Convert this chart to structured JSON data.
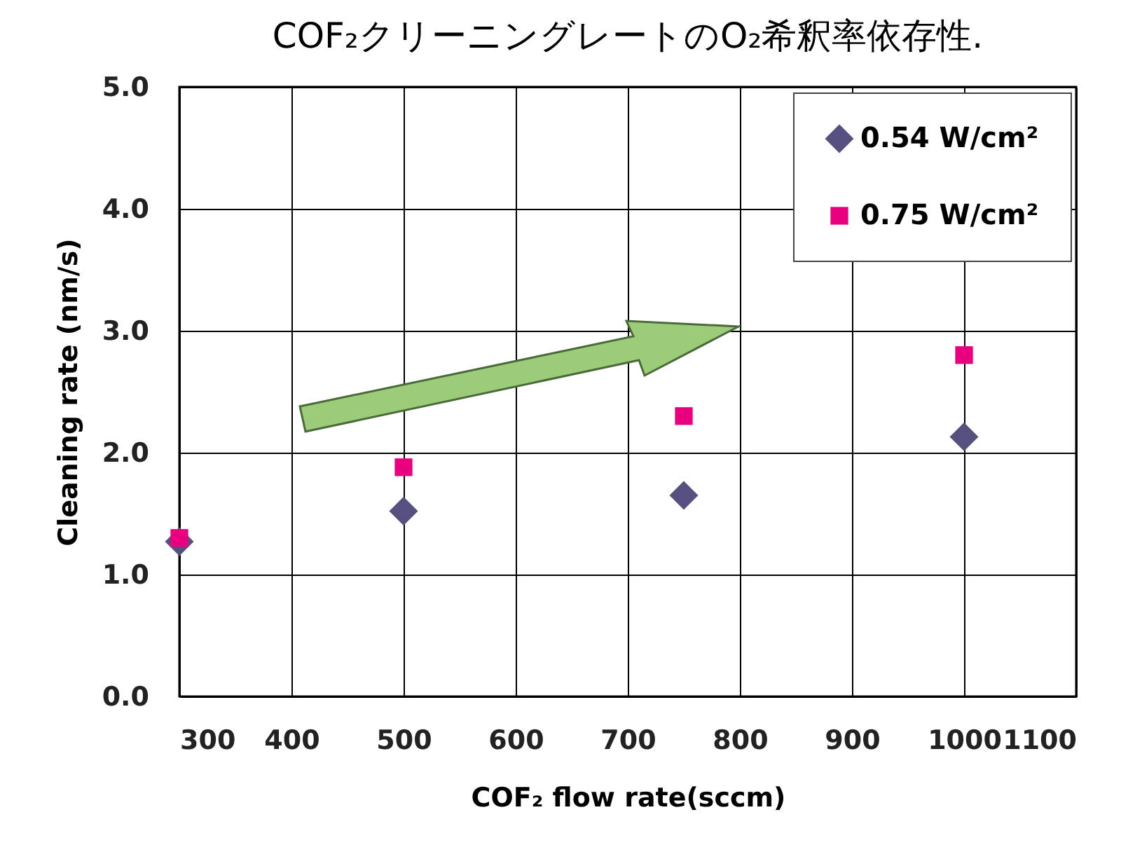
{
  "chart_data": {
    "type": "scatter",
    "title": "COF₂クリーニングレートのO₂希釈率依存性.",
    "xlabel": "COF₂ flow rate(sccm)",
    "ylabel": "Cleaning rate (nm/s)",
    "x": [
      300,
      500,
      750,
      1000
    ],
    "series": [
      {
        "name": "0.54 W/cm²",
        "color": "#56507e",
        "marker": "diamond",
        "values": [
          1.27,
          1.52,
          1.65,
          2.13
        ]
      },
      {
        "name": "0.75 W/cm²",
        "color": "#e8007e",
        "marker": "square",
        "values": [
          1.3,
          1.88,
          2.3,
          2.8
        ]
      }
    ],
    "xlim": [
      300,
      1100
    ],
    "xticks": [
      300,
      400,
      500,
      600,
      700,
      800,
      900,
      1000,
      1100
    ],
    "ylim": [
      0,
      5
    ],
    "yticks": [
      {
        "value": 0,
        "label": "0.0"
      },
      {
        "value": 1,
        "label": "1.0"
      },
      {
        "value": 2,
        "label": "2.0"
      },
      {
        "value": 3,
        "label": "3.0"
      },
      {
        "value": 4,
        "label": "4.0"
      },
      {
        "value": 5,
        "label": "5.0"
      }
    ],
    "grid": true,
    "legend": "top right"
  }
}
